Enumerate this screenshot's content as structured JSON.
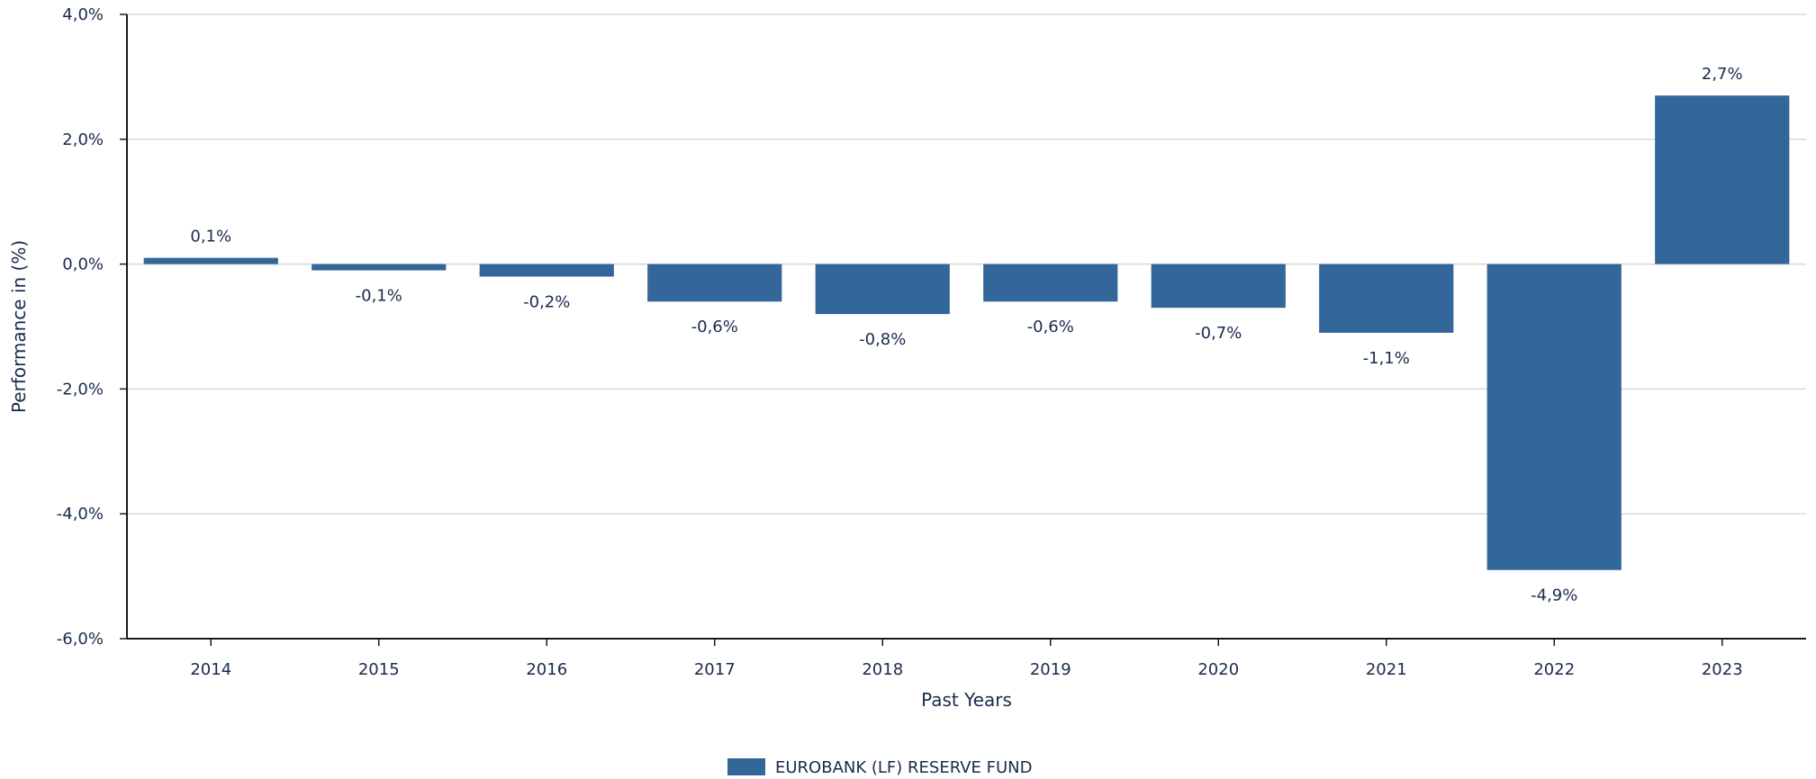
{
  "chart_data": {
    "type": "bar",
    "title": "",
    "xlabel": "Past Years",
    "ylabel": "Performance in (%)",
    "categories": [
      "2014",
      "2015",
      "2016",
      "2017",
      "2018",
      "2019",
      "2020",
      "2021",
      "2022",
      "2023"
    ],
    "series": [
      {
        "name": "EUROBANK (LF) RESERVE FUND",
        "values": [
          0.1,
          -0.1,
          -0.2,
          -0.6,
          -0.8,
          -0.6,
          -0.7,
          -1.1,
          -4.9,
          2.7
        ],
        "labels": [
          "0,1%",
          "-0,1%",
          "-0,2%",
          "-0,6%",
          "-0,8%",
          "-0,6%",
          "-0,7%",
          "-1,1%",
          "-4,9%",
          "2,7%"
        ],
        "color": "#336699"
      }
    ],
    "ylim": [
      -6,
      4
    ],
    "yticks": [
      {
        "value": 4,
        "label": "4,0%"
      },
      {
        "value": 2,
        "label": "2,0%"
      },
      {
        "value": 0,
        "label": "0,0%"
      },
      {
        "value": -2,
        "label": "-2,0%"
      },
      {
        "value": -4,
        "label": "-4,0%"
      },
      {
        "value": -6,
        "label": "-6,0%"
      }
    ],
    "grid": true,
    "legend": "bottom-center"
  },
  "colors": {
    "bar": "#336699",
    "text": "#1a2b4c",
    "grid": "#d9d9d9",
    "axis": "#1a1a1a"
  }
}
